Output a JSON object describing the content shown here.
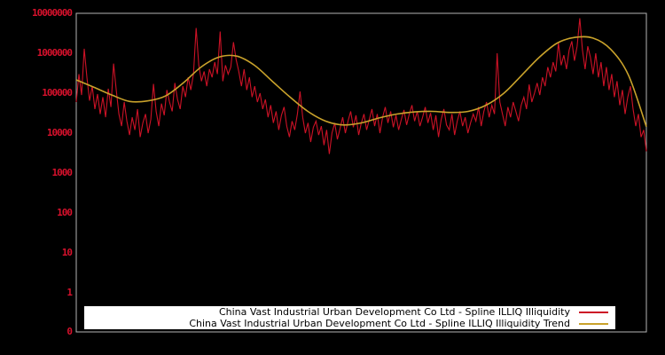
{
  "chart_data": {
    "type": "line",
    "title": "",
    "xlabel": "",
    "ylabel": "",
    "yscale": "symlog",
    "ylim": [
      0,
      10000000
    ],
    "ytick_labels": [
      "10000000",
      "1000000",
      "100000",
      "10000",
      "1000",
      "100",
      "10",
      "1",
      "0"
    ],
    "xtick_labels": [],
    "grid": false,
    "background_color": "#000000",
    "axis_frame_color": "#b3b3b3",
    "tick_label_color": "#d8112c",
    "legend_position": "bottom-center",
    "legend_background": "#ffffff",
    "legend_text_color": "#000000",
    "series": [
      {
        "name": "China Vast Industrial Urban Development Co Ltd - Spline ILLIQ Illiquidity",
        "color": "#cc1226",
        "style": "jagged",
        "values": [
          60000,
          300000,
          90000,
          1300000,
          250000,
          65000,
          150000,
          40000,
          95000,
          30000,
          80000,
          25000,
          130000,
          45000,
          550000,
          120000,
          30000,
          15000,
          60000,
          20000,
          9000,
          25000,
          12000,
          40000,
          8000,
          18000,
          30000,
          10000,
          22000,
          170000,
          35000,
          15000,
          55000,
          28000,
          120000,
          60000,
          35000,
          180000,
          70000,
          40000,
          150000,
          80000,
          250000,
          120000,
          300000,
          4300000,
          500000,
          200000,
          350000,
          150000,
          400000,
          250000,
          600000,
          300000,
          3500000,
          200000,
          500000,
          300000,
          450000,
          1900000,
          700000,
          350000,
          150000,
          400000,
          120000,
          250000,
          80000,
          150000,
          60000,
          100000,
          40000,
          70000,
          25000,
          50000,
          18000,
          35000,
          12000,
          28000,
          45000,
          15000,
          8000,
          20000,
          12000,
          30000,
          110000,
          25000,
          10000,
          18000,
          6000,
          14000,
          20000,
          9000,
          15000,
          5000,
          12000,
          3000,
          10000,
          18000,
          7000,
          13000,
          25000,
          10000,
          20000,
          35000,
          14000,
          28000,
          9000,
          18000,
          30000,
          12000,
          22000,
          40000,
          15000,
          30000,
          10000,
          25000,
          45000,
          18000,
          35000,
          14000,
          28000,
          12000,
          22000,
          38000,
          16000,
          30000,
          50000,
          20000,
          35000,
          15000,
          25000,
          45000,
          18000,
          32000,
          12000,
          28000,
          8000,
          22000,
          40000,
          16000,
          12000,
          30000,
          9000,
          20000,
          35000,
          15000,
          25000,
          10000,
          18000,
          30000,
          20000,
          45000,
          15000,
          35000,
          60000,
          25000,
          50000,
          30000,
          1000000,
          60000,
          30000,
          15000,
          45000,
          25000,
          60000,
          35000,
          20000,
          50000,
          80000,
          40000,
          165000,
          60000,
          100000,
          180000,
          90000,
          250000,
          150000,
          450000,
          250000,
          600000,
          350000,
          1800000,
          500000,
          900000,
          400000,
          1200000,
          2000000,
          650000,
          1500000,
          7500000,
          1200000,
          400000,
          1500000,
          800000,
          300000,
          1000000,
          250000,
          600000,
          150000,
          450000,
          120000,
          300000,
          80000,
          200000,
          50000,
          120000,
          30000,
          80000,
          150000,
          40000,
          15000,
          30000,
          8000,
          12000,
          3500
        ]
      },
      {
        "name": "China Vast Industrial Urban Development Co Ltd - Spline ILLIQ Illiquidity Trend",
        "color": "#c9a22b",
        "style": "smooth",
        "values": [
          215000,
          140000,
          90000,
          62000,
          64000,
          85000,
          180000,
          450000,
          800000,
          850000,
          500000,
          200000,
          80000,
          35000,
          20000,
          16000,
          18000,
          24000,
          30000,
          34000,
          35000,
          33000,
          35000,
          50000,
          100000,
          280000,
          800000,
          1800000,
          2500000,
          2400000,
          1250000,
          280000,
          14500
        ]
      }
    ]
  }
}
